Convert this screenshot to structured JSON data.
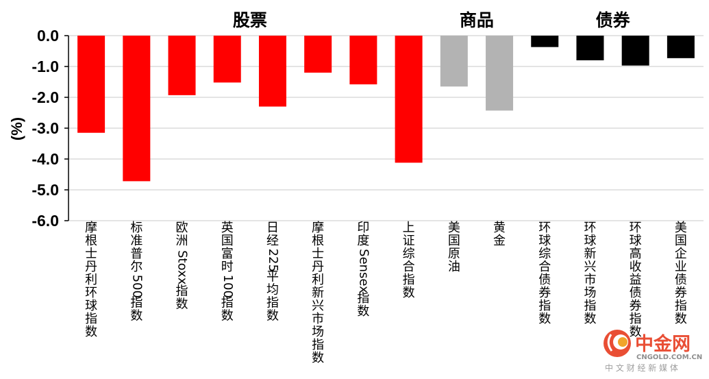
{
  "chart_data": {
    "type": "bar",
    "ylabel": "(%)",
    "ylim": [
      -6.0,
      0.0
    ],
    "yticks": [
      "0.0",
      "-1.0",
      "-2.0",
      "-3.0",
      "-4.0",
      "-5.0",
      "-6.0"
    ],
    "grid": true,
    "groups": [
      {
        "name": "股票",
        "color": "#ff0000",
        "categories": [
          "摩根士丹利环球指数",
          "标准普尔500指数",
          "欧洲Stoxx指数",
          "英国富时100指数",
          "日经225平均指数",
          "摩根士丹利新兴市场指数",
          "印度Sensex指数",
          "上证综合指数"
        ]
      },
      {
        "name": "商品",
        "color": "#b3b3b3",
        "categories": [
          "美国原油",
          "黄金"
        ]
      },
      {
        "name": "债券",
        "color": "#000000",
        "categories": [
          "环球综合债券指数",
          "环球新兴市场指数",
          "环球高收益债券指数",
          "美国企业债券指数"
        ]
      }
    ],
    "categories": [
      {
        "lines": [
          "摩",
          "根",
          "士",
          "丹",
          "利",
          "环",
          "球",
          "指",
          "数"
        ],
        "value": -3.15,
        "group": 0
      },
      {
        "lines": [
          "标",
          "准",
          "普",
          "尔",
          "500",
          "指",
          "数"
        ],
        "value": -4.72,
        "group": 0
      },
      {
        "lines": [
          "欧",
          "洲",
          "Stoxx",
          "指",
          "数"
        ],
        "value": -1.93,
        "group": 0
      },
      {
        "lines": [
          "英",
          "国",
          "富",
          "时",
          "100",
          "指",
          "数"
        ],
        "value": -1.52,
        "group": 0
      },
      {
        "lines": [
          "日",
          "经",
          "225",
          "平",
          "均",
          "指",
          "数"
        ],
        "value": -2.3,
        "group": 0
      },
      {
        "lines": [
          "摩",
          "根",
          "士",
          "丹",
          "利",
          "新",
          "兴",
          "市",
          "场",
          "指",
          "数"
        ],
        "value": -1.2,
        "group": 0
      },
      {
        "lines": [
          "印",
          "度",
          "Sensex",
          "指",
          "数"
        ],
        "value": -1.58,
        "group": 0
      },
      {
        "lines": [
          "上",
          "证",
          "综",
          "合",
          "指",
          "数"
        ],
        "value": -4.12,
        "group": 0
      },
      {
        "lines": [
          "美",
          "国",
          "原",
          "油"
        ],
        "value": -1.65,
        "group": 1
      },
      {
        "lines": [
          "黄",
          "金"
        ],
        "value": -2.43,
        "group": 1
      },
      {
        "lines": [
          "环",
          "球",
          "综",
          "合",
          "债",
          "券",
          "指",
          "数"
        ],
        "value": -0.37,
        "group": 2
      },
      {
        "lines": [
          "环",
          "球",
          "新",
          "兴",
          "市",
          "场",
          "指",
          "数"
        ],
        "value": -0.8,
        "group": 2
      },
      {
        "lines": [
          "环",
          "球",
          "高",
          "收",
          "益",
          "债",
          "券",
          "指",
          "数"
        ],
        "value": -0.97,
        "group": 2
      },
      {
        "lines": [
          "美",
          "国",
          "企",
          "业",
          "债",
          "券",
          "指",
          "数"
        ],
        "value": -0.73,
        "group": 2
      }
    ]
  },
  "watermark": {
    "name": "中金网",
    "domain": "CNGOLD.COM.CN",
    "tagline": "中 文 财 经 新 媒 体"
  }
}
